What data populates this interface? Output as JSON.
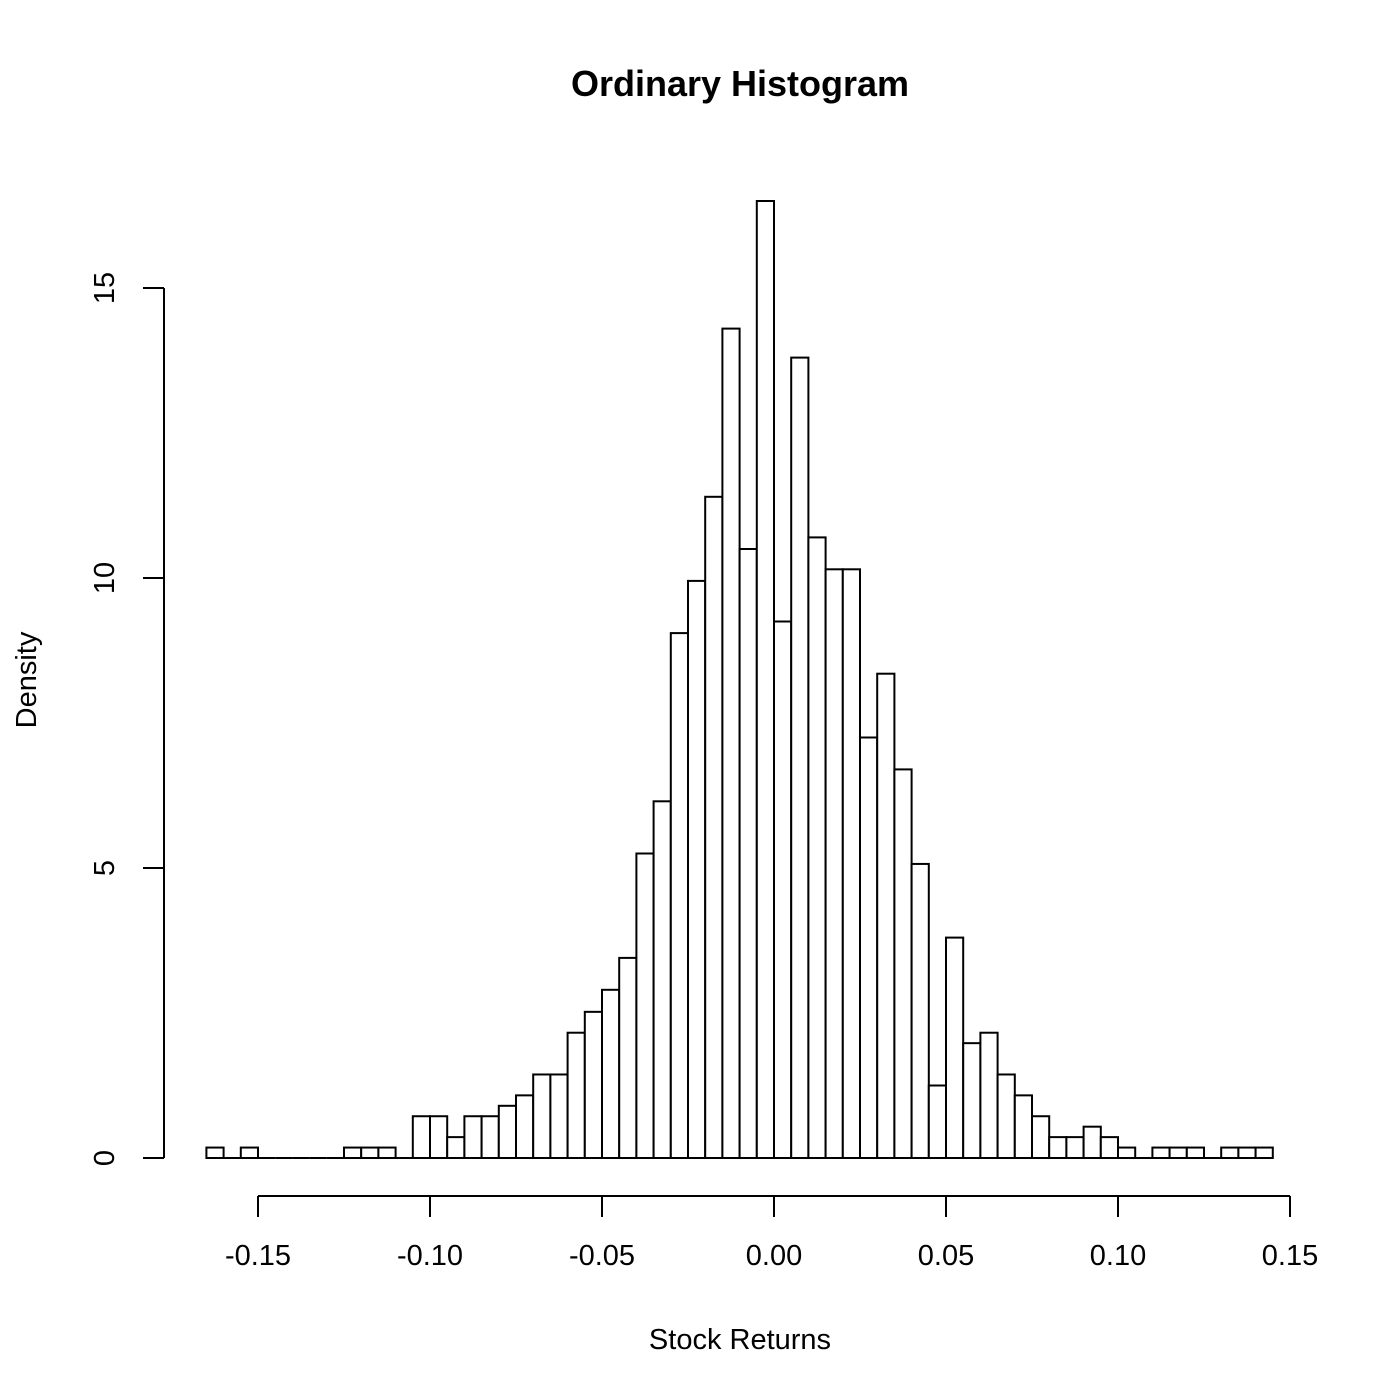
{
  "chart_data": {
    "type": "bar",
    "title": "Ordinary Histogram",
    "xlabel": "Stock Returns",
    "ylabel": "Density",
    "xlim": [
      -0.165,
      0.145
    ],
    "x_ticks": [
      -0.15,
      -0.1,
      -0.05,
      0.0,
      0.05,
      0.1,
      0.15
    ],
    "x_tick_labels": [
      "-0.15",
      "-0.10",
      "-0.05",
      "0.00",
      "0.05",
      "0.10",
      "0.15"
    ],
    "y_ticks": [
      0,
      5,
      10,
      15
    ],
    "y_tick_labels": [
      "0",
      "5",
      "10",
      "15"
    ],
    "bin_width": 0.005,
    "bins": [
      {
        "x0": -0.165,
        "x1": -0.16,
        "density": 0.18
      },
      {
        "x0": -0.16,
        "x1": -0.155,
        "density": 0.0
      },
      {
        "x0": -0.155,
        "x1": -0.15,
        "density": 0.18
      },
      {
        "x0": -0.15,
        "x1": -0.145,
        "density": 0.0
      },
      {
        "x0": -0.145,
        "x1": -0.14,
        "density": 0.0
      },
      {
        "x0": -0.14,
        "x1": -0.135,
        "density": 0.0
      },
      {
        "x0": -0.135,
        "x1": -0.13,
        "density": 0.0
      },
      {
        "x0": -0.13,
        "x1": -0.125,
        "density": 0.0
      },
      {
        "x0": -0.125,
        "x1": -0.12,
        "density": 0.18
      },
      {
        "x0": -0.12,
        "x1": -0.115,
        "density": 0.18
      },
      {
        "x0": -0.115,
        "x1": -0.11,
        "density": 0.18
      },
      {
        "x0": -0.11,
        "x1": -0.105,
        "density": 0.0
      },
      {
        "x0": -0.105,
        "x1": -0.1,
        "density": 0.72
      },
      {
        "x0": -0.1,
        "x1": -0.095,
        "density": 0.72
      },
      {
        "x0": -0.095,
        "x1": -0.09,
        "density": 0.36
      },
      {
        "x0": -0.09,
        "x1": -0.085,
        "density": 0.72
      },
      {
        "x0": -0.085,
        "x1": -0.08,
        "density": 0.72
      },
      {
        "x0": -0.08,
        "x1": -0.075,
        "density": 0.9
      },
      {
        "x0": -0.075,
        "x1": -0.07,
        "density": 1.08
      },
      {
        "x0": -0.07,
        "x1": -0.065,
        "density": 1.44
      },
      {
        "x0": -0.065,
        "x1": -0.06,
        "density": 1.44
      },
      {
        "x0": -0.06,
        "x1": -0.055,
        "density": 2.16
      },
      {
        "x0": -0.055,
        "x1": -0.05,
        "density": 2.52
      },
      {
        "x0": -0.05,
        "x1": -0.045,
        "density": 2.9
      },
      {
        "x0": -0.045,
        "x1": -0.04,
        "density": 3.45
      },
      {
        "x0": -0.04,
        "x1": -0.035,
        "density": 5.25
      },
      {
        "x0": -0.035,
        "x1": -0.03,
        "density": 6.15
      },
      {
        "x0": -0.03,
        "x1": -0.025,
        "density": 9.05
      },
      {
        "x0": -0.025,
        "x1": -0.02,
        "density": 9.95
      },
      {
        "x0": -0.02,
        "x1": -0.015,
        "density": 11.4
      },
      {
        "x0": -0.015,
        "x1": -0.01,
        "density": 14.3
      },
      {
        "x0": -0.01,
        "x1": -0.005,
        "density": 10.5
      },
      {
        "x0": -0.005,
        "x1": 0.0,
        "density": 16.5
      },
      {
        "x0": 0.0,
        "x1": 0.005,
        "density": 9.25
      },
      {
        "x0": 0.005,
        "x1": 0.01,
        "density": 13.8
      },
      {
        "x0": 0.01,
        "x1": 0.015,
        "density": 10.7
      },
      {
        "x0": 0.015,
        "x1": 0.02,
        "density": 10.15
      },
      {
        "x0": 0.02,
        "x1": 0.025,
        "density": 10.15
      },
      {
        "x0": 0.025,
        "x1": 0.03,
        "density": 7.25
      },
      {
        "x0": 0.03,
        "x1": 0.035,
        "density": 8.35
      },
      {
        "x0": 0.035,
        "x1": 0.04,
        "density": 6.7
      },
      {
        "x0": 0.04,
        "x1": 0.045,
        "density": 5.07
      },
      {
        "x0": 0.045,
        "x1": 0.05,
        "density": 1.25
      },
      {
        "x0": 0.05,
        "x1": 0.055,
        "density": 3.8
      },
      {
        "x0": 0.055,
        "x1": 0.06,
        "density": 1.98
      },
      {
        "x0": 0.06,
        "x1": 0.065,
        "density": 2.16
      },
      {
        "x0": 0.065,
        "x1": 0.07,
        "density": 1.44
      },
      {
        "x0": 0.07,
        "x1": 0.075,
        "density": 1.08
      },
      {
        "x0": 0.075,
        "x1": 0.08,
        "density": 0.72
      },
      {
        "x0": 0.08,
        "x1": 0.085,
        "density": 0.36
      },
      {
        "x0": 0.085,
        "x1": 0.09,
        "density": 0.36
      },
      {
        "x0": 0.09,
        "x1": 0.095,
        "density": 0.54
      },
      {
        "x0": 0.095,
        "x1": 0.1,
        "density": 0.36
      },
      {
        "x0": 0.1,
        "x1": 0.105,
        "density": 0.18
      },
      {
        "x0": 0.105,
        "x1": 0.11,
        "density": 0.0
      },
      {
        "x0": 0.11,
        "x1": 0.115,
        "density": 0.18
      },
      {
        "x0": 0.115,
        "x1": 0.12,
        "density": 0.18
      },
      {
        "x0": 0.12,
        "x1": 0.125,
        "density": 0.18
      },
      {
        "x0": 0.125,
        "x1": 0.13,
        "density": 0.0
      },
      {
        "x0": 0.13,
        "x1": 0.135,
        "density": 0.18
      },
      {
        "x0": 0.135,
        "x1": 0.14,
        "density": 0.18
      },
      {
        "x0": 0.14,
        "x1": 0.145,
        "density": 0.18
      }
    ],
    "grid": false,
    "legend": "none"
  }
}
